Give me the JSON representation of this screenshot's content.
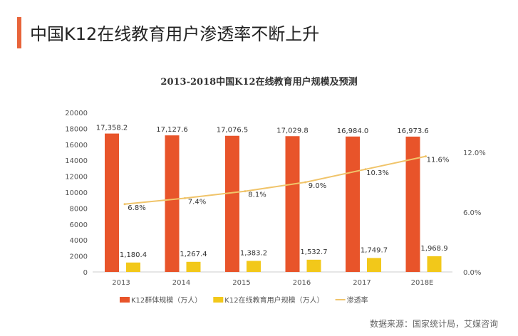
{
  "title": "中国K12在线教育用户渗透率不断上升",
  "source": "数据来源：国家统计局，艾媒咨询",
  "chart_data": {
    "type": "bar",
    "title": "2013-2018中国K12在线教育用户规模及预测",
    "categories": [
      "2013",
      "2014",
      "2015",
      "2016",
      "2017",
      "2018E"
    ],
    "series": [
      {
        "name": "K12群体规模（万人）",
        "type": "bar",
        "axis": "left",
        "color": "#e8542a",
        "values": [
          17358.2,
          17127.6,
          17076.5,
          17029.8,
          16984.0,
          16973.6
        ],
        "labels": [
          "17,358.2",
          "17,127.6",
          "17,076.5",
          "17,029.8",
          "16,984.0",
          "16,973.6"
        ]
      },
      {
        "name": "K12在线教育用户规模（万人）",
        "type": "bar",
        "axis": "left",
        "color": "#f2c81a",
        "values": [
          1180.4,
          1267.4,
          1383.2,
          1532.7,
          1749.7,
          1968.9
        ],
        "labels": [
          "1,180.4",
          "1,267.4",
          "1,383.2",
          "1,532.7",
          "1,749.7",
          "1,968.9"
        ]
      },
      {
        "name": "渗透率",
        "type": "line",
        "axis": "right",
        "color": "#f0c46a",
        "values": [
          6.8,
          7.4,
          8.1,
          9.0,
          10.3,
          11.6
        ],
        "labels": [
          "6.8%",
          "7.4%",
          "8.1%",
          "9.0%",
          "10.3%",
          "11.6%"
        ]
      }
    ],
    "y_left": {
      "range": [
        0,
        20000
      ],
      "ticks": [
        "0",
        "2000",
        "4000",
        "6000",
        "8000",
        "10000",
        "12000",
        "14000",
        "16000",
        "18000",
        "20000"
      ]
    },
    "y_right": {
      "range": [
        0,
        16
      ],
      "ticks": [
        "0.0%",
        "6.0%",
        "12.0%"
      ],
      "tick_values": [
        0,
        6,
        12
      ]
    },
    "grid": false,
    "legend": "bottom"
  }
}
